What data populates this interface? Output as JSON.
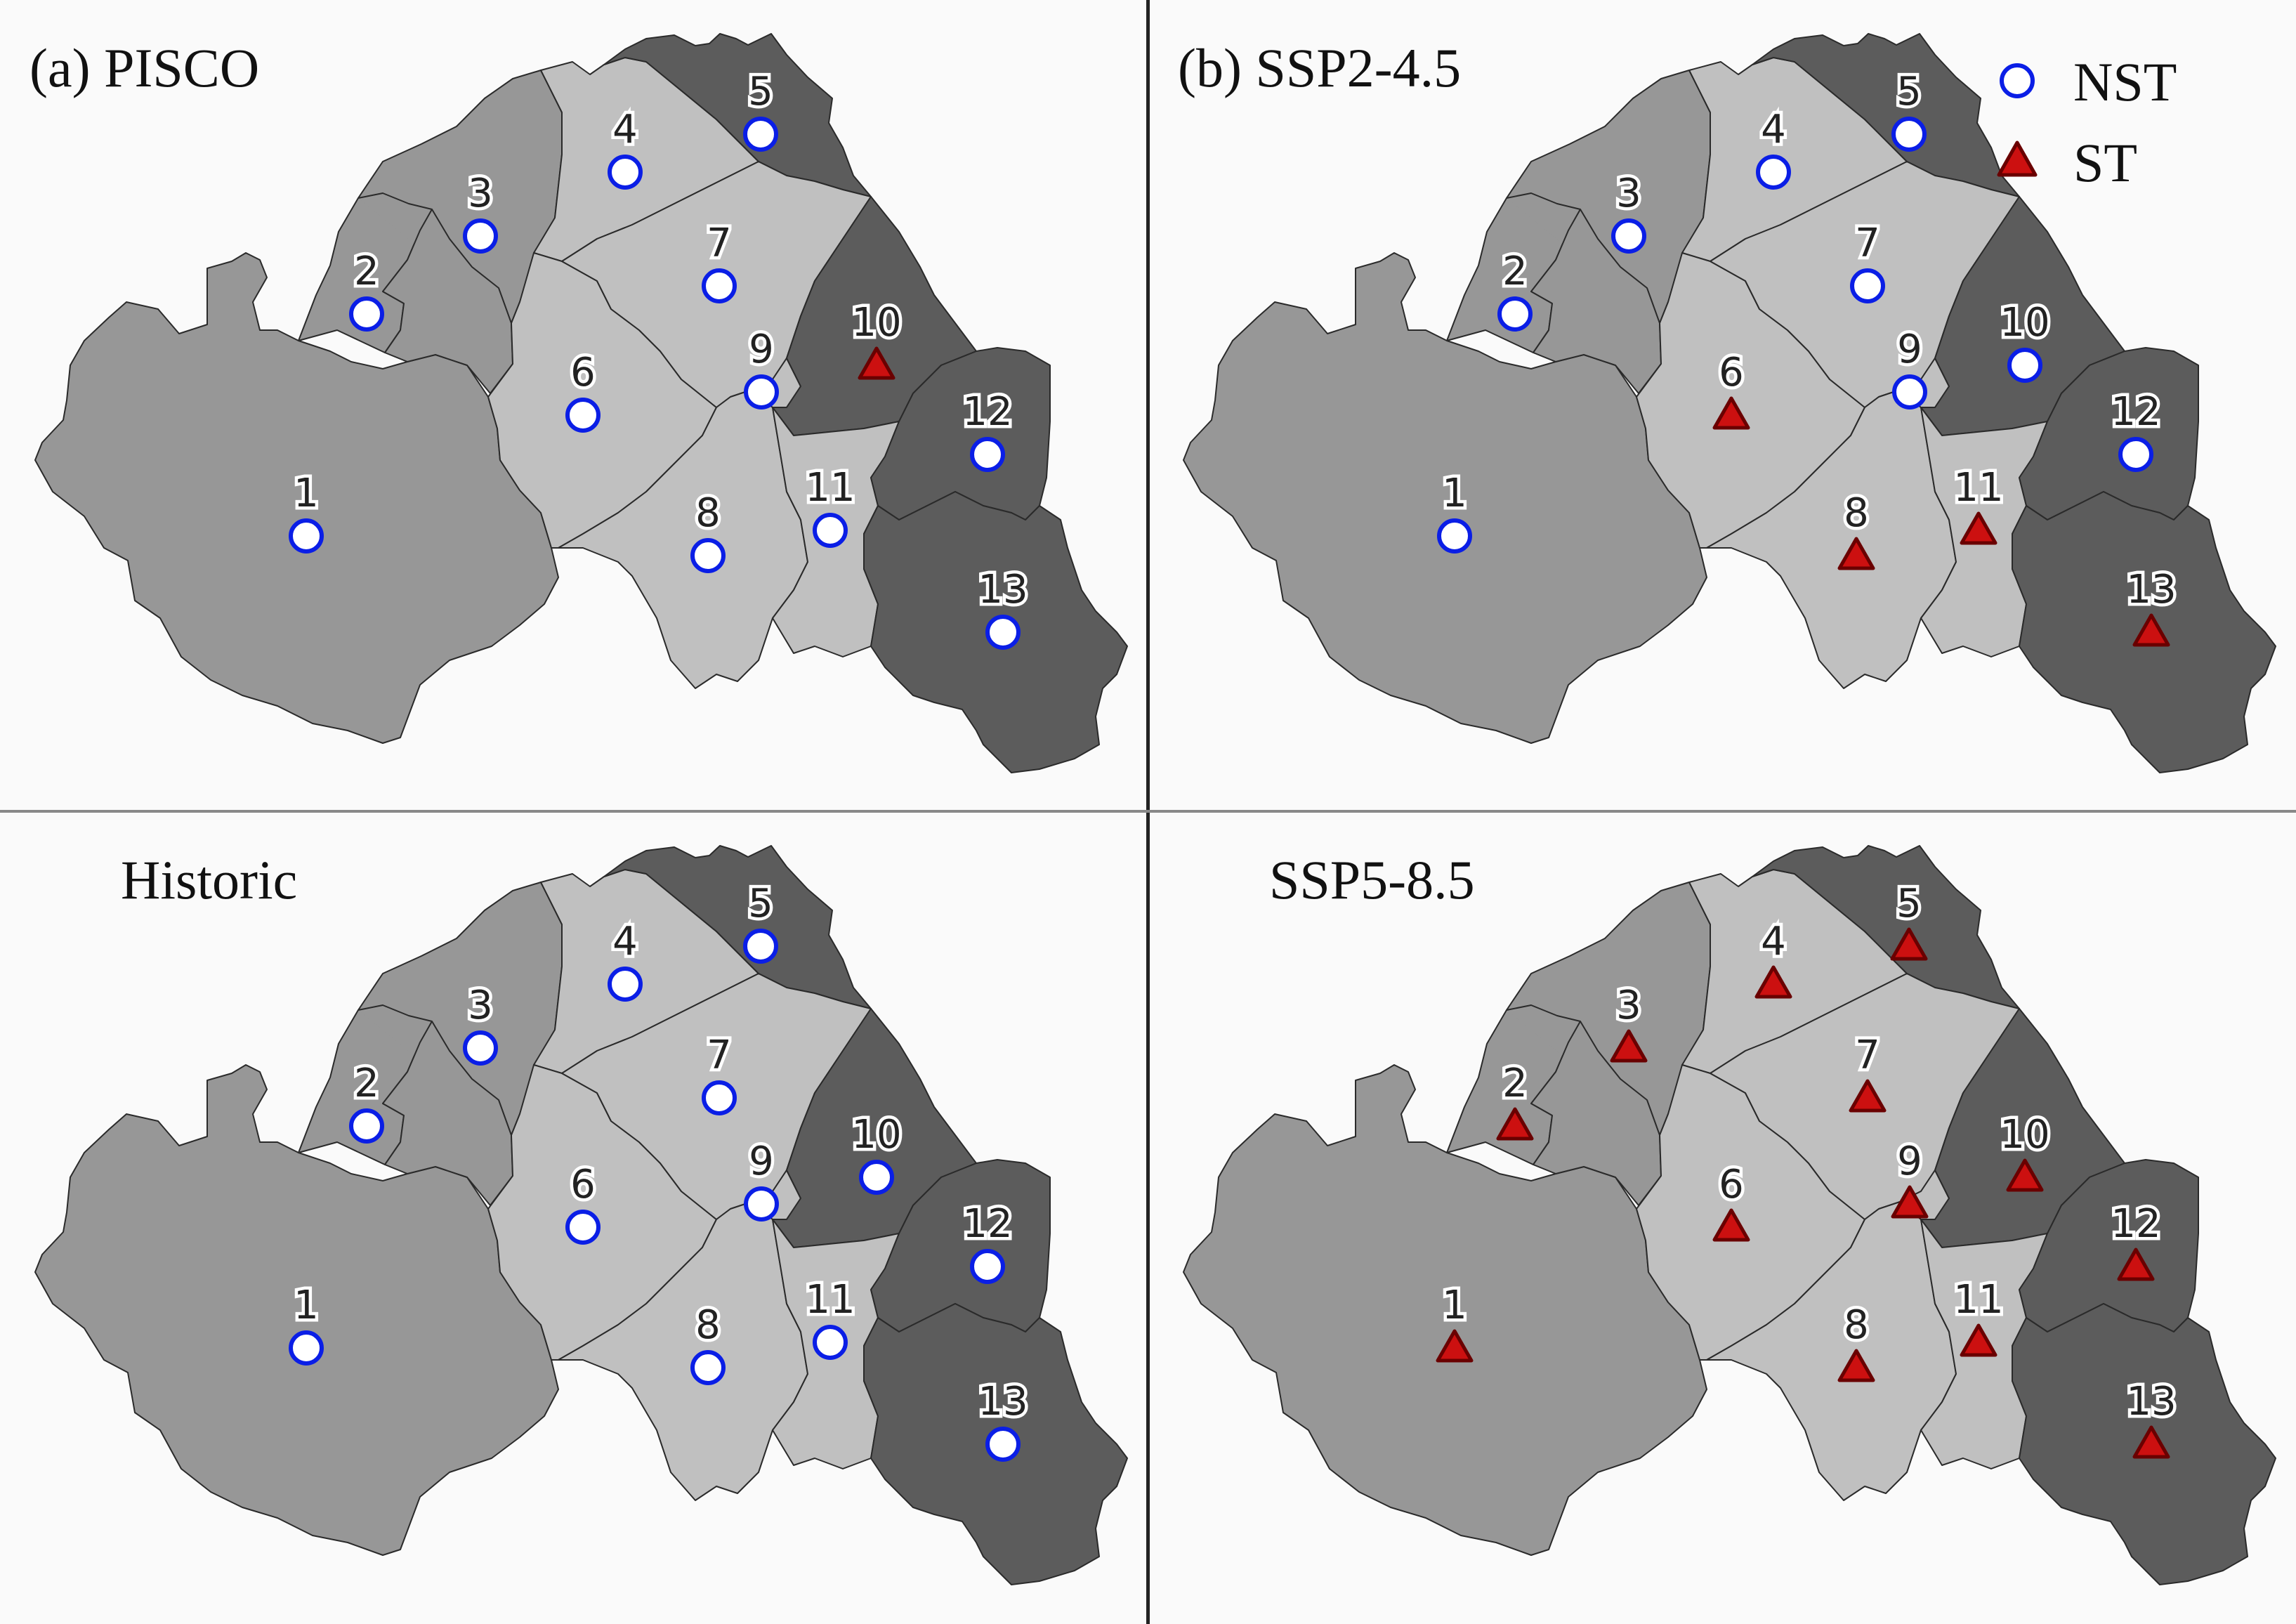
{
  "panels": [
    {
      "id": "pisco",
      "title": "(a) PISCO",
      "indent": false,
      "show_legend": false,
      "status": [
        "NST",
        "NST",
        "NST",
        "NST",
        "NST",
        "NST",
        "NST",
        "NST",
        "NST",
        "ST",
        "NST",
        "NST",
        "NST"
      ]
    },
    {
      "id": "ssp245",
      "title": "(b) SSP2-4.5",
      "indent": false,
      "show_legend": true,
      "status": [
        "NST",
        "NST",
        "NST",
        "NST",
        "NST",
        "ST",
        "NST",
        "ST",
        "NST",
        "NST",
        "ST",
        "NST",
        "ST"
      ]
    },
    {
      "id": "historic",
      "title": "Historic",
      "indent": true,
      "show_legend": false,
      "status": [
        "NST",
        "NST",
        "NST",
        "NST",
        "NST",
        "NST",
        "NST",
        "NST",
        "NST",
        "NST",
        "NST",
        "NST",
        "NST"
      ]
    },
    {
      "id": "ssp585",
      "title": "SSP5-8.5",
      "indent": true,
      "show_legend": false,
      "status": [
        "ST",
        "ST",
        "ST",
        "ST",
        "ST",
        "ST",
        "ST",
        "ST",
        "ST",
        "ST",
        "ST",
        "ST",
        "ST"
      ]
    }
  ],
  "stations": [
    "1",
    "2",
    "3",
    "4",
    "5",
    "6",
    "7",
    "8",
    "9",
    "10",
    "11",
    "12",
    "13"
  ],
  "legend": [
    {
      "symbol": "NST",
      "label": "NST"
    },
    {
      "symbol": "ST",
      "label": "ST"
    }
  ],
  "colors": {
    "light_region": "#c0c0c0",
    "medium_region": "#979797",
    "dark_region": "#5c5c5c",
    "nst_marker_stroke": "#0a1ee6",
    "st_marker_fill": "#cc1010",
    "st_marker_stroke": "#6a0000"
  }
}
